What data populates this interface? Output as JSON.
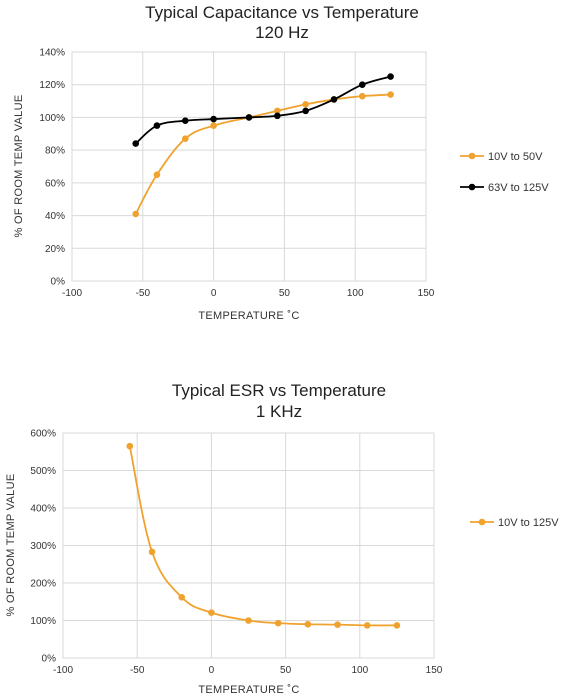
{
  "chart_data": [
    {
      "type": "line",
      "title": "Typical Capacitance vs Temperature",
      "subtitle": "120 Hz",
      "xlabel": "TEMPERATURE  ˚C",
      "ylabel": "% OF ROOM TEMP VALUE",
      "xlim": [
        -100,
        150
      ],
      "ylim": [
        0,
        140
      ],
      "xticks": [
        -100,
        -50,
        0,
        50,
        100,
        150
      ],
      "yticks": [
        0,
        20,
        40,
        60,
        80,
        100,
        120,
        140
      ],
      "x_tick_labels": [
        "-100",
        "-50",
        "0",
        "50",
        "100",
        "150"
      ],
      "y_tick_labels": [
        "0%",
        "20%",
        "40%",
        "60%",
        "80%",
        "100%",
        "120%",
        "140%"
      ],
      "grid": "vertical-and-horizontal",
      "legend_position": "right",
      "series": [
        {
          "name": "10V to 50V",
          "color": "#f0a22e",
          "x": [
            -55,
            -40,
            -20,
            0,
            25,
            45,
            65,
            85,
            105,
            125
          ],
          "y": [
            41,
            65,
            87,
            95,
            100,
            104,
            108,
            111,
            113,
            114
          ]
        },
        {
          "name": "63V to 125V",
          "color": "#000000",
          "x": [
            -55,
            -40,
            -20,
            0,
            25,
            45,
            65,
            85,
            105,
            125
          ],
          "y": [
            84,
            95,
            98,
            99,
            100,
            101,
            104,
            111,
            120,
            125
          ]
        }
      ]
    },
    {
      "type": "line",
      "title": "Typical ESR vs Temperature",
      "subtitle": "1 KHz",
      "xlabel": "TEMPERATURE  ˚C",
      "ylabel": "% OF ROOM TEMP VALUE",
      "xlim": [
        -100,
        150
      ],
      "ylim": [
        0,
        600
      ],
      "xticks": [
        -100,
        -50,
        0,
        50,
        100,
        150
      ],
      "yticks": [
        0,
        100,
        200,
        300,
        400,
        500,
        600
      ],
      "x_tick_labels": [
        "-100",
        "-50",
        "0",
        "50",
        "100",
        "150"
      ],
      "y_tick_labels": [
        "0%",
        "100%",
        "200%",
        "300%",
        "400%",
        "500%",
        "600%"
      ],
      "grid": "vertical-and-horizontal",
      "legend_position": "right",
      "series": [
        {
          "name": "10V to 125V",
          "color": "#f0a22e",
          "x": [
            -55,
            -40,
            -20,
            0,
            25,
            45,
            65,
            85,
            105,
            125
          ],
          "y": [
            565,
            283,
            162,
            121,
            100,
            93,
            90,
            89,
            87,
            87
          ]
        }
      ]
    }
  ]
}
